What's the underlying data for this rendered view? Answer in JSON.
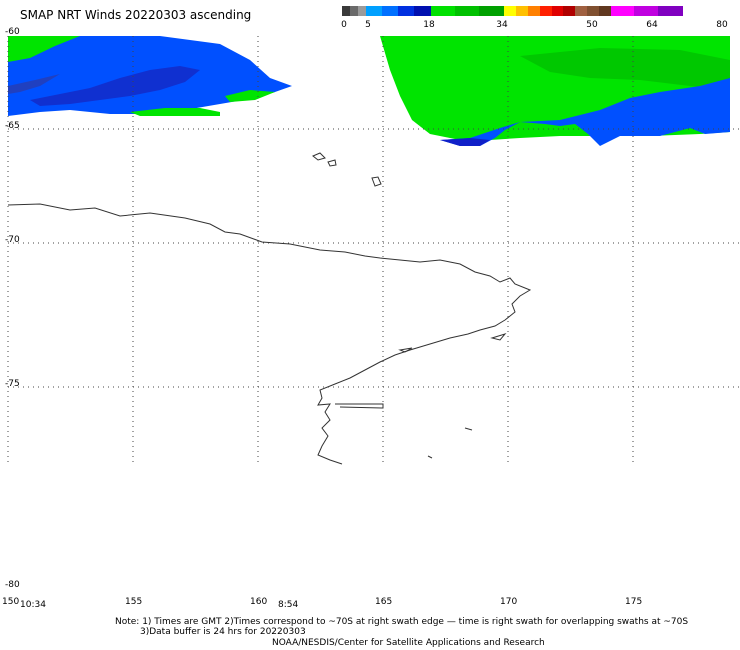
{
  "title": "SMAP NRT Winds 20220303 ascending",
  "colorbar": {
    "segments": [
      {
        "color": "#3a3a3a"
      },
      {
        "color": "#6a6a6a"
      },
      {
        "color": "#9a9a9a"
      },
      {
        "color": "#00a0ff"
      },
      {
        "color": "#0070ff"
      },
      {
        "color": "#0030e0"
      },
      {
        "color": "#0010b0"
      },
      {
        "color": "#00e000"
      },
      {
        "color": "#00c000"
      },
      {
        "color": "#00a000"
      },
      {
        "color": "#ffff00"
      },
      {
        "color": "#ffc000"
      },
      {
        "color": "#ff8000"
      },
      {
        "color": "#ff2000"
      },
      {
        "color": "#e00000"
      },
      {
        "color": "#b00000"
      },
      {
        "color": "#a06040"
      },
      {
        "color": "#805030"
      },
      {
        "color": "#603820"
      },
      {
        "color": "#ff00ff"
      },
      {
        "color": "#c000e0"
      },
      {
        "color": "#8000c0"
      }
    ],
    "labels": [
      {
        "text": "0"
      },
      {
        "text": "5"
      },
      {
        "text": "18"
      },
      {
        "text": "34"
      },
      {
        "text": "50"
      },
      {
        "text": "64"
      },
      {
        "text": "80"
      }
    ]
  },
  "lat_labels": [
    "-60",
    "-65",
    "-70",
    "-75",
    "-80"
  ],
  "lon_labels": [
    "150",
    "155",
    "160",
    "165",
    "170",
    "175"
  ],
  "times": [
    "10:34",
    "8:54"
  ],
  "notes": {
    "line1": "Note: 1) Times are GMT 2)Times correspond to ~70S at right swath edge — time is right swath for overlapping swaths at ~70S",
    "line2": "3)Data buffer is 24 hrs for 20220303",
    "line3": "NOAA/NESDIS/Center for Satellite Applications and Research"
  },
  "colors": {
    "wind_green": "#00e400",
    "wind_blue": "#0050ff",
    "wind_deep_blue": "#1020c8",
    "coast": "#333333",
    "grid": "#444444"
  }
}
